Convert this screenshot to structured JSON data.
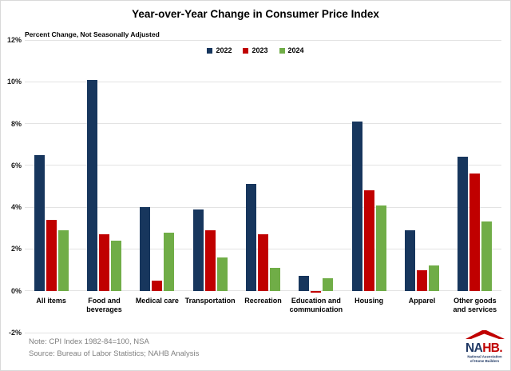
{
  "chart_data": {
    "type": "bar",
    "title": "Year-over-Year Change in Consumer Price Index",
    "subtitle": "Percent Change, Not Seasonally Adjusted",
    "categories": [
      "All items",
      "Food and beverages",
      "Medical care",
      "Transportation",
      "Recreation",
      "Education and communication",
      "Housing",
      "Apparel",
      "Other goods and services"
    ],
    "label_lines": [
      [
        "All items"
      ],
      [
        "Food and",
        "beverages"
      ],
      [
        "Medical care"
      ],
      [
        "Transportation"
      ],
      [
        "Recreation"
      ],
      [
        "Education and",
        "communication"
      ],
      [
        "Housing"
      ],
      [
        "Apparel"
      ],
      [
        "Other goods",
        "and services"
      ]
    ],
    "series": [
      {
        "name": "2022",
        "color": "#17365D",
        "values": [
          6.5,
          10.1,
          4.0,
          3.9,
          5.1,
          0.7,
          8.1,
          2.9,
          6.4
        ]
      },
      {
        "name": "2023",
        "color": "#C00000",
        "values": [
          3.4,
          2.7,
          0.5,
          2.9,
          2.7,
          -0.1,
          4.8,
          1.0,
          5.6
        ]
      },
      {
        "name": "2024",
        "color": "#70AD47",
        "values": [
          2.9,
          2.4,
          2.8,
          1.6,
          1.1,
          0.6,
          4.1,
          1.2,
          3.3
        ]
      }
    ],
    "xlabel": "",
    "ylabel": "",
    "ylim": [
      -2,
      12
    ],
    "ytick_step": 2,
    "yticks": [
      "12%",
      "10%",
      "8%",
      "6%",
      "4%",
      "2%",
      "0%",
      "-2%"
    ],
    "grid": true,
    "legend_position": "top-center"
  },
  "footer": {
    "note": "Note: CPI Index 1982-84=100, NSA",
    "source": "Source: Bureau of Labor Statistics; NAHB Analysis"
  },
  "logo": {
    "na": "NA",
    "hb": "HB.",
    "line1": "National Association",
    "line2": "of Home Builders",
    "navy": "#1F3864",
    "red": "#C00000"
  }
}
